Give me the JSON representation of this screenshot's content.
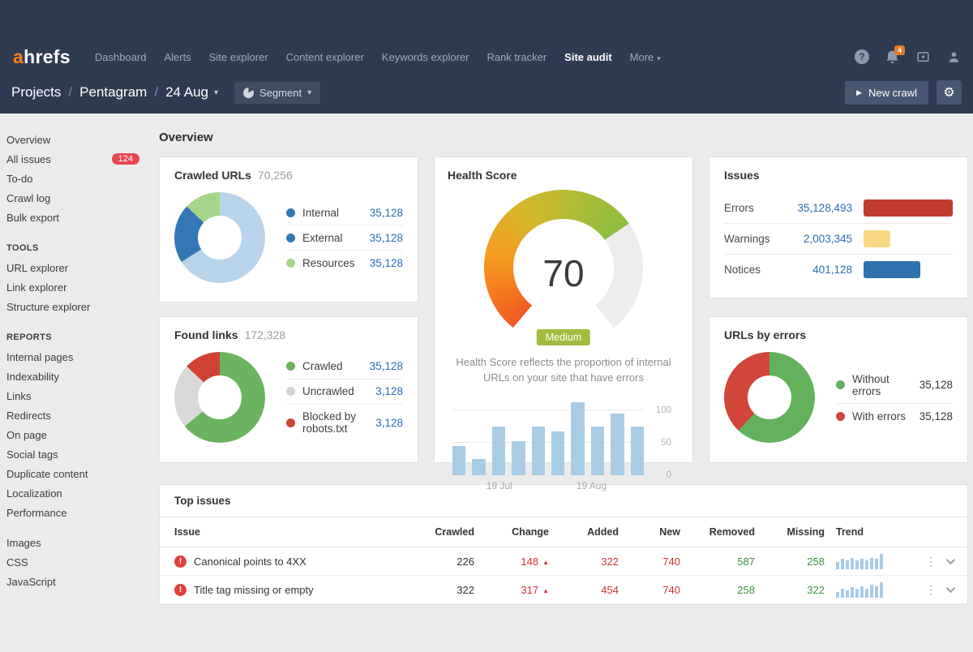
{
  "nav": {
    "logo_a": "a",
    "logo_rest": "hrefs",
    "items": [
      {
        "label": "Dashboard"
      },
      {
        "label": "Alerts"
      },
      {
        "label": "Site explorer"
      },
      {
        "label": "Content explorer"
      },
      {
        "label": "Keywords explorer"
      },
      {
        "label": "Rank tracker"
      },
      {
        "label": "Site audit",
        "active": true
      },
      {
        "label": "More",
        "caret": true
      }
    ],
    "notification_count": "4"
  },
  "toolbar": {
    "breadcrumb": [
      "Projects",
      "Pentagram",
      "24 Aug"
    ],
    "segment_label": "Segment",
    "new_crawl_label": "New crawl"
  },
  "sidebar": {
    "sections": [
      {
        "items": [
          {
            "label": "Overview"
          },
          {
            "label": "All issues",
            "badge": "124"
          },
          {
            "label": "To-do"
          },
          {
            "label": "Crawl log"
          },
          {
            "label": "Bulk export"
          }
        ]
      },
      {
        "header": "TOOLS",
        "items": [
          {
            "label": "URL explorer"
          },
          {
            "label": "Link explorer"
          },
          {
            "label": "Structure explorer"
          }
        ]
      },
      {
        "header": "REPORTS",
        "items": [
          {
            "label": "Internal pages"
          },
          {
            "label": "Indexability"
          },
          {
            "label": "Links"
          },
          {
            "label": "Redirects"
          },
          {
            "label": "On page"
          },
          {
            "label": "Social tags"
          },
          {
            "label": "Duplicate content"
          },
          {
            "label": "Localization"
          },
          {
            "label": "Performance"
          }
        ]
      },
      {
        "items": [
          {
            "label": "Images"
          },
          {
            "label": "CSS"
          },
          {
            "label": "JavaScript"
          }
        ]
      }
    ]
  },
  "page": {
    "title": "Overview"
  },
  "crawled_urls": {
    "title": "Crawled URLs",
    "total": "70,256",
    "donut": {
      "segments": [
        {
          "color": "#b9d4ea",
          "pct": 66
        },
        {
          "color": "#3377b6",
          "pct": 21
        },
        {
          "color": "#a8d38b",
          "pct": 13
        }
      ]
    },
    "legend": [
      {
        "label": "Internal",
        "value": "35,128",
        "color": "#3377b6"
      },
      {
        "label": "External",
        "value": "35,128",
        "color": "#3377b6"
      },
      {
        "label": "Resources",
        "value": "35,128",
        "color": "#a8d38b"
      }
    ]
  },
  "found_links": {
    "title": "Found links",
    "total": "172,328",
    "donut": {
      "segments": [
        {
          "color": "#6cb35f",
          "pct": 64
        },
        {
          "color": "#d9d9d9",
          "pct": 23
        },
        {
          "color": "#cf4335",
          "pct": 13
        }
      ]
    },
    "legend": [
      {
        "label": "Crawled",
        "value": "35,128",
        "color": "#6cb35f"
      },
      {
        "label": "Uncrawled",
        "value": "3,128",
        "color": "#d4d4d4"
      },
      {
        "label": "Blocked by robots.txt",
        "value": "3,128",
        "color": "#cf4335"
      }
    ]
  },
  "health": {
    "title": "Health Score",
    "score": "70",
    "rating": "Medium",
    "description": "Health Score reflects the proportion of internal URLs on your site that have errors",
    "gauge": {
      "pct": 70,
      "from": 220,
      "span": 280,
      "track": "#ececec",
      "stops": [
        [
          "#f15a22",
          0
        ],
        [
          "#f59b1e",
          0.3
        ],
        [
          "#d3b92c",
          0.55
        ],
        [
          "#8cbe3f",
          1
        ]
      ]
    },
    "chart": {
      "type": "bar",
      "values": [
        45,
        25,
        75,
        52,
        75,
        67,
        112,
        75,
        95,
        75
      ],
      "max": 115,
      "color": "#a9cce6",
      "x_labels": [
        "19 Jul",
        "19 Aug"
      ],
      "y_labels": [
        "100",
        "50",
        "0"
      ]
    }
  },
  "issues": {
    "title": "Issues",
    "rows": [
      {
        "label": "Errors",
        "value": "35,128,493",
        "bar": {
          "pct": 100,
          "color": "#c23b2e"
        }
      },
      {
        "label": "Warnings",
        "value": "2,003,345",
        "bar": {
          "pct": 30,
          "color": "#f8d883"
        }
      },
      {
        "label": "Notices",
        "value": "401,128",
        "bar": {
          "pct": 64,
          "color": "#2f72ad"
        }
      }
    ]
  },
  "urls_by_errors": {
    "title": "URLs by errors",
    "donut": {
      "segments": [
        {
          "color": "#63b15c",
          "pct": 62
        },
        {
          "color": "#d2453a",
          "pct": 38
        }
      ]
    },
    "legend": [
      {
        "label": "Without errors",
        "value": "35,128",
        "color": "#63b15c"
      },
      {
        "label": "With errors",
        "value": "35,128",
        "color": "#d2453a"
      }
    ]
  },
  "top_issues": {
    "title": "Top issues",
    "columns": [
      "Issue",
      "Crawled",
      "Change",
      "Added",
      "New",
      "Removed",
      "Missing",
      "Trend"
    ],
    "rows": [
      {
        "name": "Canonical points to 4XX",
        "crawled": "226",
        "change": "148",
        "added": "322",
        "new": "740",
        "removed": "587",
        "missing": "258",
        "spark": {
          "values": [
            5,
            7,
            6,
            8,
            6,
            7,
            6,
            8,
            7,
            11
          ],
          "max": 11,
          "color": "#a9cce6"
        }
      },
      {
        "name": "Title tag missing or empty",
        "crawled": "322",
        "change": "317",
        "added": "454",
        "new": "740",
        "removed": "258",
        "missing": "322",
        "spark": {
          "values": [
            4,
            6,
            5,
            7,
            6,
            8,
            6,
            9,
            8,
            11
          ],
          "max": 11,
          "color": "#a9cce6"
        }
      }
    ]
  }
}
